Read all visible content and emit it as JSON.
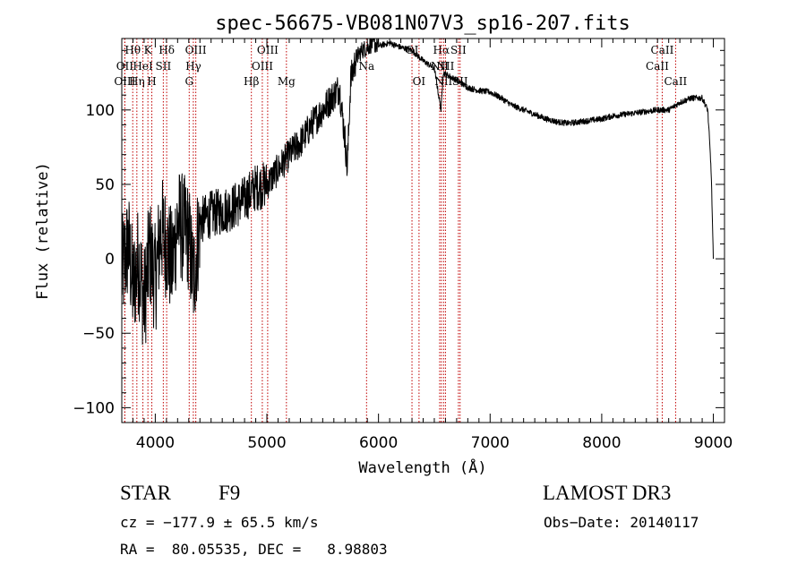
{
  "chart_data": {
    "type": "line",
    "title": "spec-56675-VB081N07V3_sp16-207.fits",
    "xlabel": "Wavelength (Å)",
    "ylabel": "Flux (relative)",
    "xlim": [
      3700,
      9100
    ],
    "ylim": [
      -110,
      148
    ],
    "xticks": [
      4000,
      5000,
      6000,
      7000,
      8000,
      9000
    ],
    "yticks": [
      -100,
      -50,
      0,
      50,
      100
    ],
    "x": [
      3700,
      3760,
      3800,
      3850,
      3900,
      3950,
      4000,
      4050,
      4100,
      4150,
      4200,
      4250,
      4300,
      4340,
      4400,
      4500,
      4600,
      4700,
      4800,
      4900,
      5000,
      5100,
      5200,
      5300,
      5400,
      5500,
      5600,
      5650,
      5700,
      5720,
      5750,
      5800,
      5850,
      5900,
      5950,
      6000,
      6100,
      6200,
      6300,
      6400,
      6500,
      6560,
      6580,
      6700,
      6800,
      6900,
      7000,
      7100,
      7200,
      7300,
      7400,
      7500,
      7600,
      7700,
      7800,
      7900,
      8000,
      8100,
      8200,
      8300,
      8400,
      8500,
      8600,
      8700,
      8800,
      8900,
      8950,
      8980,
      9000
    ],
    "values": [
      -10,
      10,
      -20,
      0,
      -30,
      5,
      -15,
      20,
      10,
      -5,
      25,
      20,
      15,
      -15,
      25,
      30,
      32,
      35,
      40,
      48,
      50,
      60,
      70,
      78,
      90,
      100,
      110,
      115,
      80,
      60,
      120,
      135,
      140,
      142,
      145,
      143,
      145,
      142,
      140,
      133,
      128,
      100,
      125,
      120,
      115,
      113,
      112,
      108,
      103,
      100,
      97,
      94,
      92,
      91,
      92,
      93,
      94,
      96,
      97,
      98,
      99,
      100,
      100,
      105,
      108,
      108,
      100,
      60,
      0
    ],
    "spectral_lines": [
      {
        "name": "Hθ",
        "wavelength": 3798,
        "row": 1
      },
      {
        "name": "OII",
        "wavelength": 3727,
        "row": 2
      },
      {
        "name": "OIII",
        "wavelength": 3727,
        "row": 3
      },
      {
        "name": "K",
        "wavelength": 3934,
        "row": 1
      },
      {
        "name": "HeI",
        "wavelength": 3889,
        "row": 2
      },
      {
        "name": "Hη",
        "wavelength": 3835,
        "row": 3
      },
      {
        "name": "Hδ",
        "wavelength": 4102,
        "row": 1
      },
      {
        "name": "SII",
        "wavelength": 4072,
        "row": 2
      },
      {
        "name": "H",
        "wavelength": 3969,
        "row": 3
      },
      {
        "name": "OIII",
        "wavelength": 4363,
        "row": 1
      },
      {
        "name": "Hγ",
        "wavelength": 4341,
        "row": 2
      },
      {
        "name": "G",
        "wavelength": 4304,
        "row": 3
      },
      {
        "name": "Hβ",
        "wavelength": 4861,
        "row": 3
      },
      {
        "name": "OIII",
        "wavelength": 5007,
        "row": 1
      },
      {
        "name": "OIII",
        "wavelength": 4959,
        "row": 2
      },
      {
        "name": "Mg",
        "wavelength": 5175,
        "row": 3
      },
      {
        "name": "Na",
        "wavelength": 5893,
        "row": 2
      },
      {
        "name": "OI",
        "wavelength": 6300,
        "row": 1
      },
      {
        "name": "OI",
        "wavelength": 6363,
        "row": 3
      },
      {
        "name": "Hα",
        "wavelength": 6563,
        "row": 1
      },
      {
        "name": "NII",
        "wavelength": 6548,
        "row": 2
      },
      {
        "name": "NII",
        "wavelength": 6583,
        "row": 3
      },
      {
        "name": "SII",
        "wavelength": 6716,
        "row": 1
      },
      {
        "name": "NII",
        "wavelength": 6600,
        "row": 2
      },
      {
        "name": "SII",
        "wavelength": 6731,
        "row": 3
      },
      {
        "name": "CaII",
        "wavelength": 8542,
        "row": 1
      },
      {
        "name": "CaII",
        "wavelength": 8498,
        "row": 2
      },
      {
        "name": "CaII",
        "wavelength": 8662,
        "row": 3
      }
    ]
  },
  "info": {
    "object": "STAR",
    "subclass": "F9",
    "survey": "LAMOST DR3",
    "cz": "cz = −177.9 ± 65.5 km/s",
    "obs_date": "Obs−Date: 20140117",
    "radec": "RA =  80.05535, DEC =   8.98803"
  }
}
